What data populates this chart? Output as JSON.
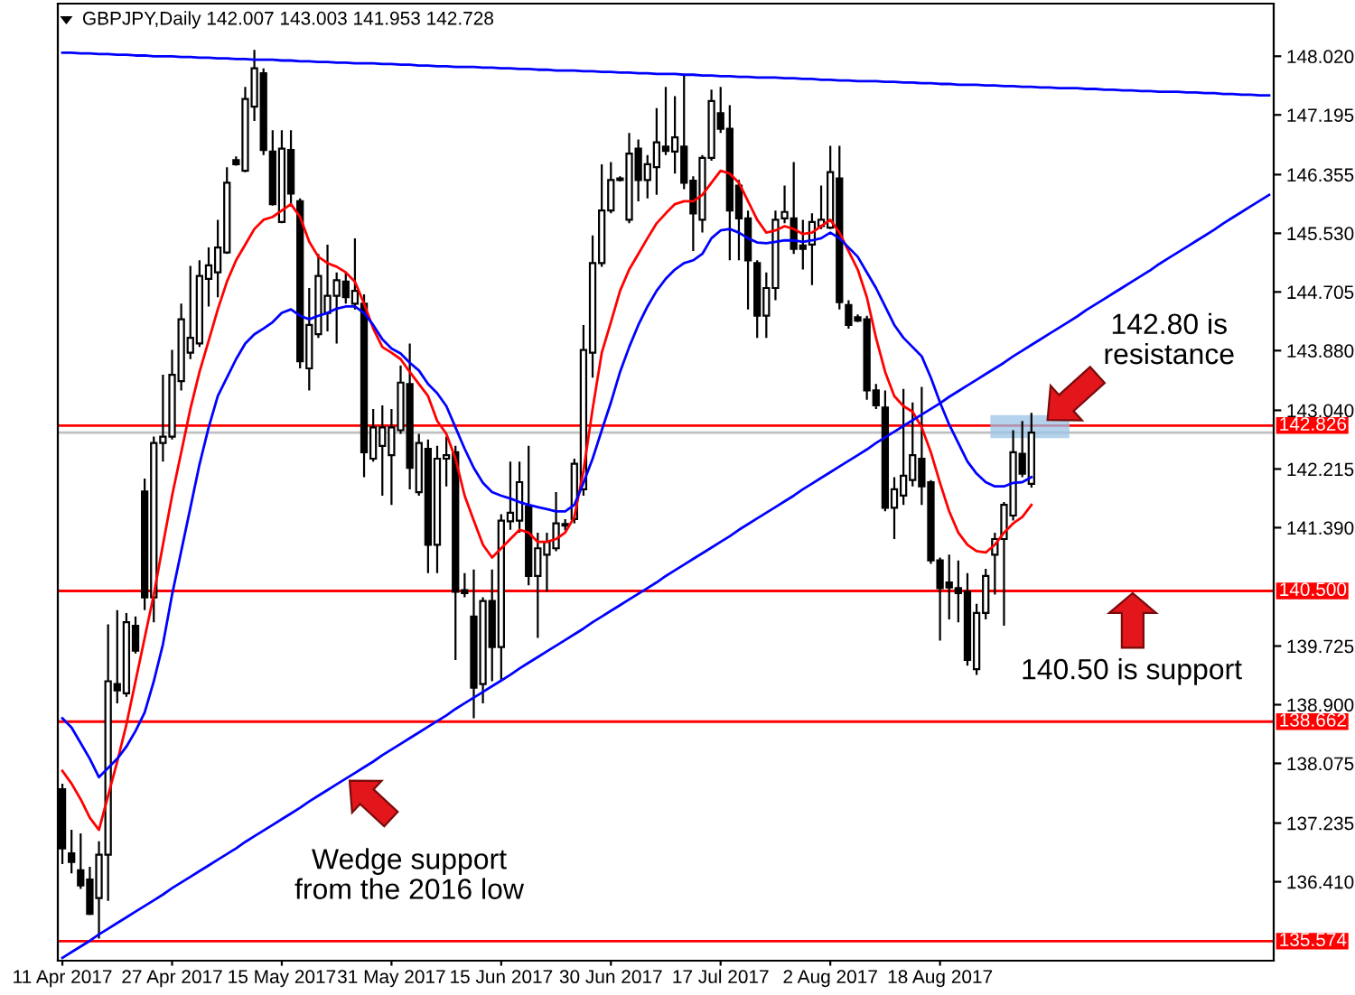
{
  "chart_data": {
    "type": "candlestick",
    "title": "GBPJPY,Daily 142.007 143.003 141.953 142.728",
    "color": "#000000",
    "categories": [
      "11 Apr 2017",
      null,
      null,
      null,
      null,
      null,
      null,
      null,
      null,
      null,
      null,
      null,
      "27 Apr 2017",
      null,
      null,
      null,
      null,
      null,
      null,
      null,
      null,
      null,
      null,
      null,
      "15 May 2017",
      null,
      null,
      null,
      null,
      null,
      null,
      null,
      null,
      null,
      null,
      null,
      "31 May 2017",
      null,
      null,
      null,
      null,
      null,
      null,
      null,
      null,
      null,
      null,
      null,
      "15 Jun 2017",
      null,
      null,
      null,
      null,
      null,
      null,
      null,
      null,
      null,
      null,
      null,
      "30 Jun 2017",
      null,
      null,
      null,
      null,
      null,
      null,
      null,
      null,
      null,
      null,
      null,
      "17 Jul 2017",
      null,
      null,
      null,
      null,
      null,
      null,
      null,
      null,
      null,
      null,
      null,
      "2 Aug 2017",
      null,
      null,
      null,
      null,
      null,
      null,
      null,
      null,
      null,
      null,
      null,
      "18 Aug 2017",
      null,
      null,
      null,
      null,
      null,
      null,
      null,
      null,
      null,
      null,
      null,
      null,
      null,
      null,
      null,
      null,
      null,
      null,
      null,
      null,
      null,
      null,
      null,
      null,
      null,
      null,
      null,
      null,
      null,
      null,
      null,
      null,
      null,
      null,
      null,
      null
    ],
    "ohlc": [
      [
        137.71,
        137.79,
        136.66,
        136.88
      ],
      [
        136.81,
        137.14,
        136.53,
        136.69
      ],
      [
        136.57,
        137.09,
        136.31,
        136.36
      ],
      [
        136.44,
        136.62,
        135.94,
        135.96
      ],
      [
        136.18,
        136.98,
        135.61,
        136.79
      ],
      [
        136.79,
        140.03,
        136.14,
        139.23
      ],
      [
        139.19,
        140.23,
        138.92,
        139.1
      ],
      [
        139.06,
        140.19,
        139.01,
        140.06
      ],
      [
        140.01,
        140.14,
        139.62,
        139.66
      ],
      [
        141.9,
        142.08,
        140.23,
        140.41
      ],
      [
        140.41,
        142.67,
        140.06,
        142.58
      ],
      [
        142.58,
        143.54,
        142.32,
        142.67
      ],
      [
        142.67,
        143.89,
        142.63,
        143.54
      ],
      [
        143.45,
        144.54,
        143.32,
        144.32
      ],
      [
        143.85,
        145.07,
        143.76,
        144.06
      ],
      [
        143.98,
        145.15,
        143.93,
        144.93
      ],
      [
        144.89,
        145.33,
        144.5,
        145.08
      ],
      [
        144.98,
        145.72,
        144.63,
        145.33
      ],
      [
        145.26,
        146.46,
        145.24,
        146.24
      ],
      [
        146.56,
        146.61,
        146.48,
        146.5
      ],
      [
        146.41,
        147.59,
        146.39,
        147.42
      ],
      [
        147.31,
        148.11,
        147.11,
        147.85
      ],
      [
        147.78,
        147.85,
        146.63,
        146.7
      ],
      [
        146.68,
        146.98,
        145.92,
        145.94
      ],
      [
        145.69,
        146.98,
        145.67,
        146.72
      ],
      [
        146.7,
        146.98,
        145.94,
        146.09
      ],
      [
        145.98,
        146.02,
        143.63,
        143.73
      ],
      [
        143.63,
        144.76,
        143.32,
        144.24
      ],
      [
        144.11,
        145.24,
        144.06,
        144.93
      ],
      [
        144.41,
        145.37,
        144.15,
        144.65
      ],
      [
        144.65,
        144.98,
        143.98,
        144.87
      ],
      [
        144.85,
        144.98,
        144.54,
        144.63
      ],
      [
        144.54,
        145.46,
        144.46,
        144.72
      ],
      [
        144.54,
        144.67,
        142.1,
        142.45
      ],
      [
        142.36,
        143.06,
        142.32,
        142.8
      ],
      [
        142.54,
        143.11,
        141.84,
        142.8
      ],
      [
        142.41,
        143.06,
        141.71,
        142.8
      ],
      [
        142.76,
        143.67,
        142.71,
        143.43
      ],
      [
        143.41,
        143.98,
        141.93,
        142.23
      ],
      [
        141.89,
        142.71,
        141.84,
        142.58
      ],
      [
        142.5,
        142.63,
        140.75,
        141.15
      ],
      [
        141.15,
        142.54,
        140.75,
        142.36
      ],
      [
        142.36,
        142.67,
        141.97,
        142.41
      ],
      [
        142.45,
        142.54,
        139.53,
        140.49
      ],
      [
        140.51,
        140.75,
        140.41,
        140.47
      ],
      [
        140.14,
        140.8,
        138.71,
        139.14
      ],
      [
        139.19,
        140.41,
        138.92,
        140.36
      ],
      [
        140.36,
        140.8,
        139.23,
        139.71
      ],
      [
        139.71,
        141.58,
        139.23,
        141.49
      ],
      [
        141.48,
        142.32,
        141.36,
        141.6
      ],
      [
        141.49,
        142.32,
        141.32,
        142.03
      ],
      [
        141.69,
        142.54,
        140.58,
        140.71
      ],
      [
        140.71,
        141.32,
        139.84,
        141.1
      ],
      [
        141.01,
        141.32,
        140.49,
        141.19
      ],
      [
        141.1,
        141.89,
        141.06,
        141.45
      ],
      [
        141.42,
        141.51,
        141.35,
        141.44
      ],
      [
        141.51,
        142.36,
        141.45,
        142.29
      ],
      [
        141.93,
        144.24,
        141.84,
        143.89
      ],
      [
        143.85,
        145.5,
        143.5,
        145.11
      ],
      [
        145.11,
        146.5,
        145.06,
        145.85
      ],
      [
        145.85,
        146.53,
        145.81,
        146.28
      ],
      [
        146.28,
        146.33,
        146.26,
        146.3
      ],
      [
        145.72,
        146.94,
        145.67,
        146.65
      ],
      [
        146.72,
        146.85,
        145.98,
        146.28
      ],
      [
        146.28,
        146.63,
        146.02,
        146.5
      ],
      [
        146.46,
        147.29,
        146.07,
        146.81
      ],
      [
        146.75,
        147.59,
        146.63,
        146.69
      ],
      [
        146.68,
        147.46,
        146.37,
        146.88
      ],
      [
        146.75,
        147.77,
        146.15,
        146.24
      ],
      [
        146.27,
        146.33,
        145.28,
        145.81
      ],
      [
        145.72,
        146.63,
        145.54,
        146.59
      ],
      [
        146.59,
        147.55,
        146.55,
        147.39
      ],
      [
        147.22,
        147.59,
        146.94,
        147.0
      ],
      [
        147.0,
        147.33,
        145.15,
        145.85
      ],
      [
        146.2,
        146.28,
        145.15,
        145.74
      ],
      [
        145.74,
        145.85,
        144.46,
        145.15
      ],
      [
        145.11,
        145.15,
        144.06,
        144.37
      ],
      [
        144.37,
        144.98,
        144.06,
        144.76
      ],
      [
        144.76,
        145.85,
        144.59,
        145.72
      ],
      [
        145.74,
        146.2,
        145.67,
        145.83
      ],
      [
        145.74,
        146.53,
        145.24,
        145.31
      ],
      [
        145.36,
        145.72,
        145.02,
        145.31
      ],
      [
        145.37,
        145.81,
        144.8,
        145.69
      ],
      [
        145.63,
        146.2,
        145.59,
        145.72
      ],
      [
        145.61,
        146.76,
        145.59,
        146.39
      ],
      [
        146.3,
        146.76,
        144.46,
        144.56
      ],
      [
        144.52,
        144.59,
        144.19,
        144.24
      ],
      [
        144.35,
        144.39,
        144.28,
        144.3
      ],
      [
        144.32,
        144.37,
        143.19,
        143.32
      ],
      [
        143.32,
        143.41,
        143.06,
        143.11
      ],
      [
        143.08,
        143.32,
        141.62,
        141.67
      ],
      [
        141.67,
        142.1,
        141.23,
        141.93
      ],
      [
        141.84,
        143.34,
        141.71,
        142.12
      ],
      [
        142.06,
        143.15,
        141.97,
        142.41
      ],
      [
        142.36,
        143.37,
        141.71,
        141.97
      ],
      [
        142.03,
        142.06,
        140.88,
        140.93
      ],
      [
        140.93,
        140.97,
        139.8,
        140.54
      ],
      [
        140.62,
        141.01,
        140.1,
        140.55
      ],
      [
        140.54,
        140.93,
        140.06,
        140.47
      ],
      [
        140.49,
        140.75,
        139.45,
        139.53
      ],
      [
        139.4,
        140.32,
        139.32,
        140.19
      ],
      [
        140.19,
        140.81,
        140.1,
        140.71
      ],
      [
        141.01,
        141.32,
        140.45,
        141.23
      ],
      [
        141.23,
        141.75,
        140.01,
        141.71
      ],
      [
        141.56,
        142.76,
        141.49,
        142.45
      ],
      [
        142.43,
        142.89,
        142.1,
        142.15
      ],
      [
        142.007,
        143.003,
        141.953,
        142.728
      ],
      null,
      null,
      null,
      null,
      null,
      null,
      null,
      null,
      null,
      null,
      null,
      null,
      null,
      null,
      null,
      null,
      null,
      null,
      null,
      null,
      null,
      null,
      null,
      null,
      null,
      null
    ],
    "series": [
      {
        "type": "line",
        "color": "#ff0000",
        "values": [
          137.97,
          137.79,
          137.57,
          137.31,
          137.14,
          137.62,
          138.1,
          138.62,
          139.23,
          139.84,
          140.45,
          141.15,
          141.84,
          142.45,
          143.06,
          143.58,
          144.02,
          144.46,
          144.85,
          145.15,
          145.37,
          145.59,
          145.72,
          145.76,
          145.85,
          145.94,
          145.76,
          145.41,
          145.2,
          145.11,
          145.06,
          144.98,
          144.85,
          144.54,
          144.19,
          143.93,
          143.85,
          143.76,
          143.58,
          143.41,
          143.24,
          142.89,
          142.71,
          142.36,
          141.84,
          141.49,
          141.15,
          140.97,
          141.1,
          141.23,
          141.36,
          141.32,
          141.19,
          141.19,
          141.23,
          141.32,
          141.54,
          142.19,
          143.06,
          143.85,
          144.28,
          144.72,
          145.02,
          145.24,
          145.46,
          145.67,
          145.81,
          145.94,
          145.98,
          145.98,
          146.07,
          146.24,
          146.41,
          146.37,
          146.24,
          145.98,
          145.72,
          145.54,
          145.57,
          145.63,
          145.59,
          145.52,
          145.54,
          145.63,
          145.72,
          145.54,
          145.28,
          145.02,
          144.63,
          144.06,
          143.58,
          143.24,
          143.1,
          143.02,
          142.8,
          142.45,
          142.02,
          141.62,
          141.32,
          141.15,
          141.06,
          141.04,
          141.15,
          141.32,
          141.45,
          141.54,
          141.71,
          null,
          null,
          null,
          null,
          null,
          null,
          null,
          null,
          null,
          null,
          null,
          null,
          null,
          null,
          null,
          null,
          null,
          null,
          null,
          null,
          null,
          null,
          null,
          null,
          null,
          null
        ]
      },
      {
        "type": "line",
        "color": "#0000ff",
        "values": [
          138.71,
          138.58,
          138.36,
          138.14,
          137.88,
          138.01,
          138.14,
          138.31,
          138.53,
          138.79,
          139.23,
          139.75,
          140.45,
          141.06,
          141.67,
          142.28,
          142.8,
          143.24,
          143.5,
          143.76,
          143.98,
          144.11,
          144.19,
          144.28,
          144.41,
          144.46,
          144.37,
          144.32,
          144.37,
          144.41,
          144.47,
          144.5,
          144.5,
          144.41,
          144.24,
          144.04,
          143.91,
          143.84,
          143.71,
          143.6,
          143.41,
          143.28,
          143.1,
          142.8,
          142.5,
          142.23,
          142.02,
          141.89,
          141.84,
          141.8,
          141.75,
          141.71,
          141.68,
          141.65,
          141.62,
          141.62,
          141.71,
          142.02,
          142.36,
          142.76,
          143.15,
          143.58,
          143.93,
          144.24,
          144.5,
          144.72,
          144.89,
          145.02,
          145.11,
          145.15,
          145.24,
          145.46,
          145.57,
          145.59,
          145.54,
          145.46,
          145.4,
          145.39,
          145.41,
          145.43,
          145.43,
          145.41,
          145.43,
          145.46,
          145.54,
          145.46,
          145.33,
          145.2,
          144.98,
          144.76,
          144.5,
          144.24,
          144.06,
          143.93,
          143.8,
          143.5,
          143.15,
          142.84,
          142.58,
          142.32,
          142.15,
          142.03,
          141.97,
          141.97,
          142.02,
          142.03,
          142.1,
          null,
          null,
          null,
          null,
          null,
          null,
          null,
          null,
          null,
          null,
          null,
          null,
          null,
          null,
          null,
          null,
          null,
          null,
          null,
          null,
          null,
          null,
          null,
          null,
          null,
          null
        ]
      },
      {
        "type": "line",
        "color": "#0000ff",
        "values": [
          148.07,
          148.07,
          148.06,
          148.06,
          148.05,
          148.05,
          148.04,
          148.04,
          148.03,
          148.03,
          148.02,
          148.02,
          148.02,
          148.01,
          148.01,
          148.0,
          148.0,
          147.99,
          147.99,
          147.98,
          147.98,
          147.97,
          147.97,
          147.97,
          147.96,
          147.96,
          147.95,
          147.95,
          147.94,
          147.94,
          147.93,
          147.93,
          147.92,
          147.92,
          147.92,
          147.91,
          147.91,
          147.9,
          147.9,
          147.89,
          147.89,
          147.88,
          147.88,
          147.87,
          147.87,
          147.87,
          147.86,
          147.86,
          147.85,
          147.85,
          147.84,
          147.84,
          147.83,
          147.83,
          147.82,
          147.82,
          147.82,
          147.81,
          147.81,
          147.8,
          147.8,
          147.79,
          147.79,
          147.78,
          147.78,
          147.77,
          147.77,
          147.77,
          147.76,
          147.76,
          147.75,
          147.75,
          147.74,
          147.74,
          147.73,
          147.73,
          147.72,
          147.72,
          147.72,
          147.71,
          147.71,
          147.7,
          147.7,
          147.69,
          147.69,
          147.68,
          147.68,
          147.67,
          147.67,
          147.67,
          147.66,
          147.66,
          147.65,
          147.65,
          147.64,
          147.64,
          147.63,
          147.63,
          147.62,
          147.62,
          147.62,
          147.61,
          147.61,
          147.6,
          147.6,
          147.59,
          147.59,
          147.58,
          147.58,
          147.57,
          147.57,
          147.57,
          147.56,
          147.56,
          147.55,
          147.55,
          147.54,
          147.54,
          147.53,
          147.53,
          147.52,
          147.52,
          147.52,
          147.51,
          147.51,
          147.5,
          147.5,
          147.49,
          147.49,
          147.48,
          147.48,
          147.47,
          147.47
        ]
      },
      {
        "type": "line",
        "color": "#0000ff",
        "values": [
          135.34,
          135.42,
          135.5,
          135.58,
          135.67,
          135.75,
          135.83,
          135.91,
          135.99,
          136.07,
          136.15,
          136.23,
          136.32,
          136.4,
          136.48,
          136.56,
          136.64,
          136.72,
          136.8,
          136.88,
          136.97,
          137.05,
          137.13,
          137.21,
          137.29,
          137.37,
          137.45,
          137.54,
          137.62,
          137.7,
          137.78,
          137.86,
          137.94,
          138.02,
          138.1,
          138.19,
          138.27,
          138.35,
          138.43,
          138.51,
          138.59,
          138.67,
          138.75,
          138.84,
          138.92,
          139.0,
          139.08,
          139.16,
          139.24,
          139.32,
          139.41,
          139.49,
          139.57,
          139.65,
          139.73,
          139.81,
          139.89,
          139.97,
          140.06,
          140.14,
          140.22,
          140.3,
          140.38,
          140.46,
          140.54,
          140.62,
          140.71,
          140.79,
          140.87,
          140.95,
          141.03,
          141.11,
          141.19,
          141.27,
          141.36,
          141.44,
          141.52,
          141.6,
          141.68,
          141.76,
          141.84,
          141.93,
          142.01,
          142.09,
          142.17,
          142.25,
          142.33,
          142.41,
          142.49,
          142.58,
          142.66,
          142.74,
          142.82,
          142.9,
          142.98,
          143.06,
          143.14,
          143.23,
          143.31,
          143.39,
          143.47,
          143.55,
          143.63,
          143.71,
          143.8,
          143.88,
          143.96,
          144.04,
          144.12,
          144.2,
          144.28,
          144.36,
          144.45,
          144.53,
          144.61,
          144.69,
          144.77,
          144.85,
          144.93,
          145.01,
          145.1,
          145.18,
          145.26,
          145.34,
          145.42,
          145.5,
          145.58,
          145.67,
          145.75,
          145.83,
          145.91,
          145.99,
          146.07
        ]
      }
    ],
    "ylim": [
      135.3,
      148.76
    ],
    "yticks": [
      {
        "value": 148.02,
        "label": "148.020"
      },
      {
        "value": 147.195,
        "label": "147.195"
      },
      {
        "value": 146.355,
        "label": "146.355"
      },
      {
        "value": 145.53,
        "label": "145.530"
      },
      {
        "value": 144.705,
        "label": "144.705"
      },
      {
        "value": 143.88,
        "label": "143.880"
      },
      {
        "value": 143.04,
        "label": "143.040"
      },
      {
        "value": 142.215,
        "label": "142.215"
      },
      {
        "value": 141.39,
        "label": "141.390"
      },
      {
        "value": 139.725,
        "label": "139.725"
      },
      {
        "value": 138.9,
        "label": "138.900"
      },
      {
        "value": 138.075,
        "label": "138.075"
      },
      {
        "value": 137.235,
        "label": "137.235"
      },
      {
        "value": 136.41,
        "label": "136.410"
      }
    ],
    "ref_lines": [
      {
        "axis": "y",
        "value": 142.728,
        "color": "#c0c0c0"
      },
      {
        "axis": "y",
        "value": 142.826,
        "label": "142.826",
        "color": "#ff0000"
      },
      {
        "axis": "y",
        "value": 140.5,
        "label": "140.500",
        "color": "#ff0000"
      },
      {
        "axis": "y",
        "value": 138.662,
        "label": "138.662",
        "color": "#ff0000"
      },
      {
        "axis": "y",
        "value": 135.574,
        "label": "135.574",
        "color": "#ff0000"
      }
    ],
    "annotations": [
      "142.80 is\nresistance",
      "140.50 is support",
      "Wedge support\nfrom the 2016 low"
    ]
  }
}
